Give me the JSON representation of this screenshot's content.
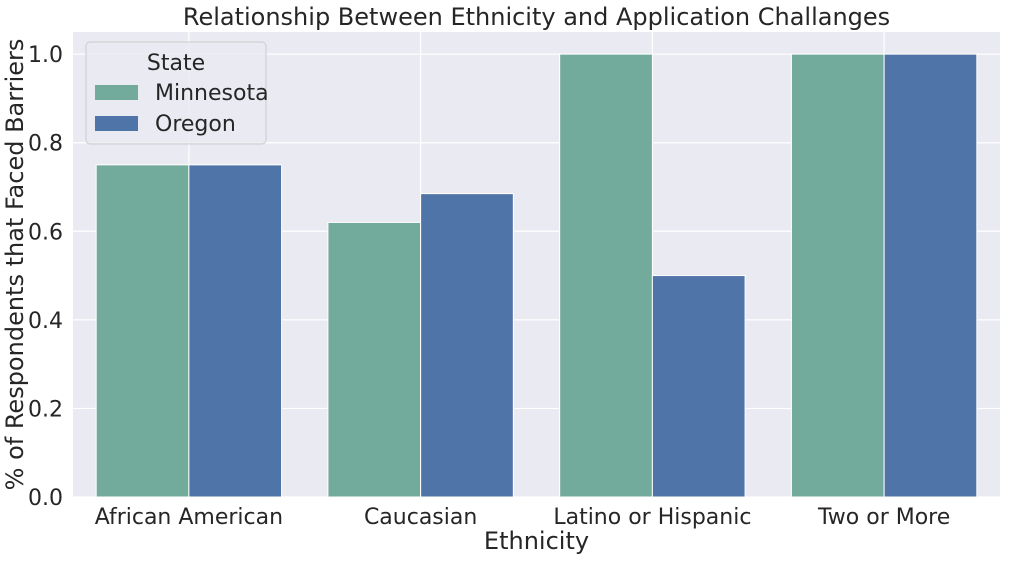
{
  "chart_data": {
    "type": "bar",
    "title": "Relationship Between Ethnicity and Application Challanges",
    "xlabel": "Ethnicity",
    "ylabel": "% of Respondents that Faced Barriers",
    "categories": [
      "African American",
      "Caucasian",
      "Latino or Hispanic",
      "Two or More"
    ],
    "series": [
      {
        "name": "Minnesota",
        "values": [
          0.75,
          0.62,
          1.0,
          1.0
        ],
        "color": "#72AA9B"
      },
      {
        "name": "Oregon",
        "values": [
          0.75,
          0.685,
          0.5,
          1.0
        ],
        "color": "#4F74A8"
      }
    ],
    "ylim": [
      0,
      1.05
    ],
    "yticks": [
      "0.0",
      "0.2",
      "0.4",
      "0.6",
      "0.8",
      "1.0"
    ],
    "grid": true,
    "legend": {
      "title": "State",
      "position": "top-left"
    },
    "colors": {
      "background": "#EAEAF2",
      "grid": "#FFFFFF",
      "text": "#262626"
    }
  }
}
